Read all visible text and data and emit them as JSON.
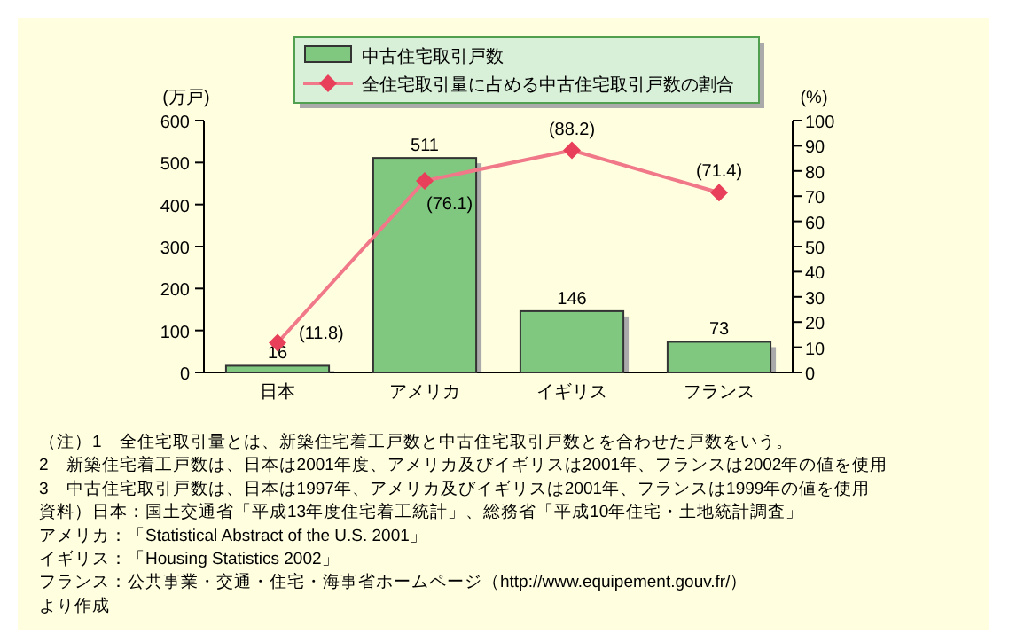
{
  "chart_data": {
    "type": "bar",
    "categories": [
      "日本",
      "アメリカ",
      "イギリス",
      "フランス"
    ],
    "series": [
      {
        "name": "中古住宅取引戸数",
        "color": "#80c880",
        "values": [
          16,
          511,
          146,
          73
        ]
      },
      {
        "name": "全住宅取引量に占める中古住宅取引戸数の割合",
        "type": "line",
        "axis": "y2",
        "color": "#f07888",
        "values": [
          11.8,
          76.1,
          88.2,
          71.4
        ],
        "value_labels": [
          "(11.8)",
          "(76.1)",
          "(88.2)",
          "(71.4)"
        ]
      }
    ],
    "ylabel": "(万戸)",
    "y2label": "(%)",
    "ylim": [
      0,
      600
    ],
    "yticks": [
      0,
      100,
      200,
      300,
      400,
      500,
      600
    ],
    "y2lim": [
      0,
      100
    ],
    "y2ticks": [
      0,
      10,
      20,
      30,
      40,
      50,
      60,
      70,
      80,
      90,
      100
    ],
    "data_labels": true,
    "marker": "diamond",
    "legend": "top",
    "grid": false,
    "annotations": [
      "（注）1　全住宅取引量とは、新築住宅着工戸数と中古住宅取引戸数とを合わせた戸数をいう。",
      "2　新築住宅着工戸数は、日本は2001年度、アメリカ及びイギリスは2001年、フランスは2002年の値を使用",
      "3　中古住宅取引戸数は、日本は1997年、アメリカ及びイギリスは2001年、フランスは1999年の値を使用",
      "資料）日本：国土交通省「平成13年度住宅着工統計」、総務省「平成10年住宅・土地統計調査」",
      "アメリカ：「Statistical Abstract of the U.S. 2001」",
      "イギリス：「Housing Statistics 2002」",
      "フランス：公共事業・交通・住宅・海事省ホームページ（http://www.equipement.gouv.fr/）",
      "より作成"
    ]
  }
}
